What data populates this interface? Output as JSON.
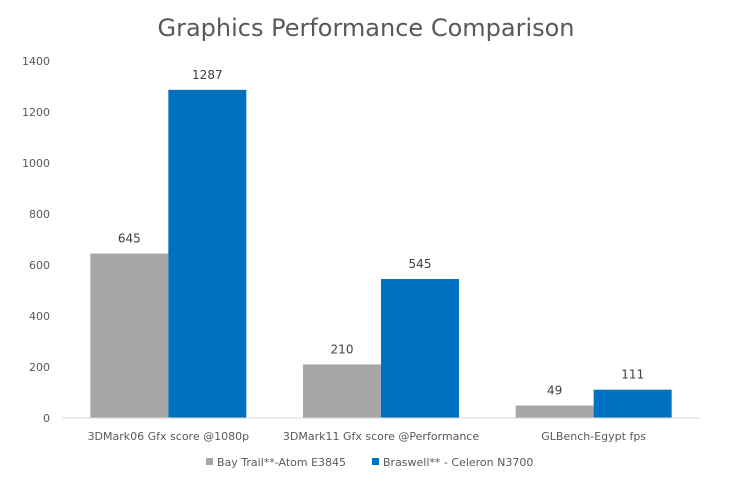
{
  "chart_data": {
    "type": "bar",
    "title": "Graphics Performance Comparison",
    "xlabel": "",
    "ylabel": "",
    "ylim": [
      0,
      1400
    ],
    "yticks": [
      0,
      200,
      400,
      600,
      800,
      1000,
      1200,
      1400
    ],
    "grid": false,
    "legend_position": "bottom",
    "categories": [
      "3DMark06 Gfx score @1080p",
      "3DMark11 Gfx score @Performance",
      "GLBench-Egypt fps"
    ],
    "series": [
      {
        "name": "Bay Trail**-Atom E3845",
        "color": "#a6a6a6",
        "values": [
          645,
          210,
          49
        ]
      },
      {
        "name": "Braswell** - Celeron N3700",
        "color": "#0070c0",
        "values": [
          1287,
          545,
          111
        ]
      }
    ]
  }
}
